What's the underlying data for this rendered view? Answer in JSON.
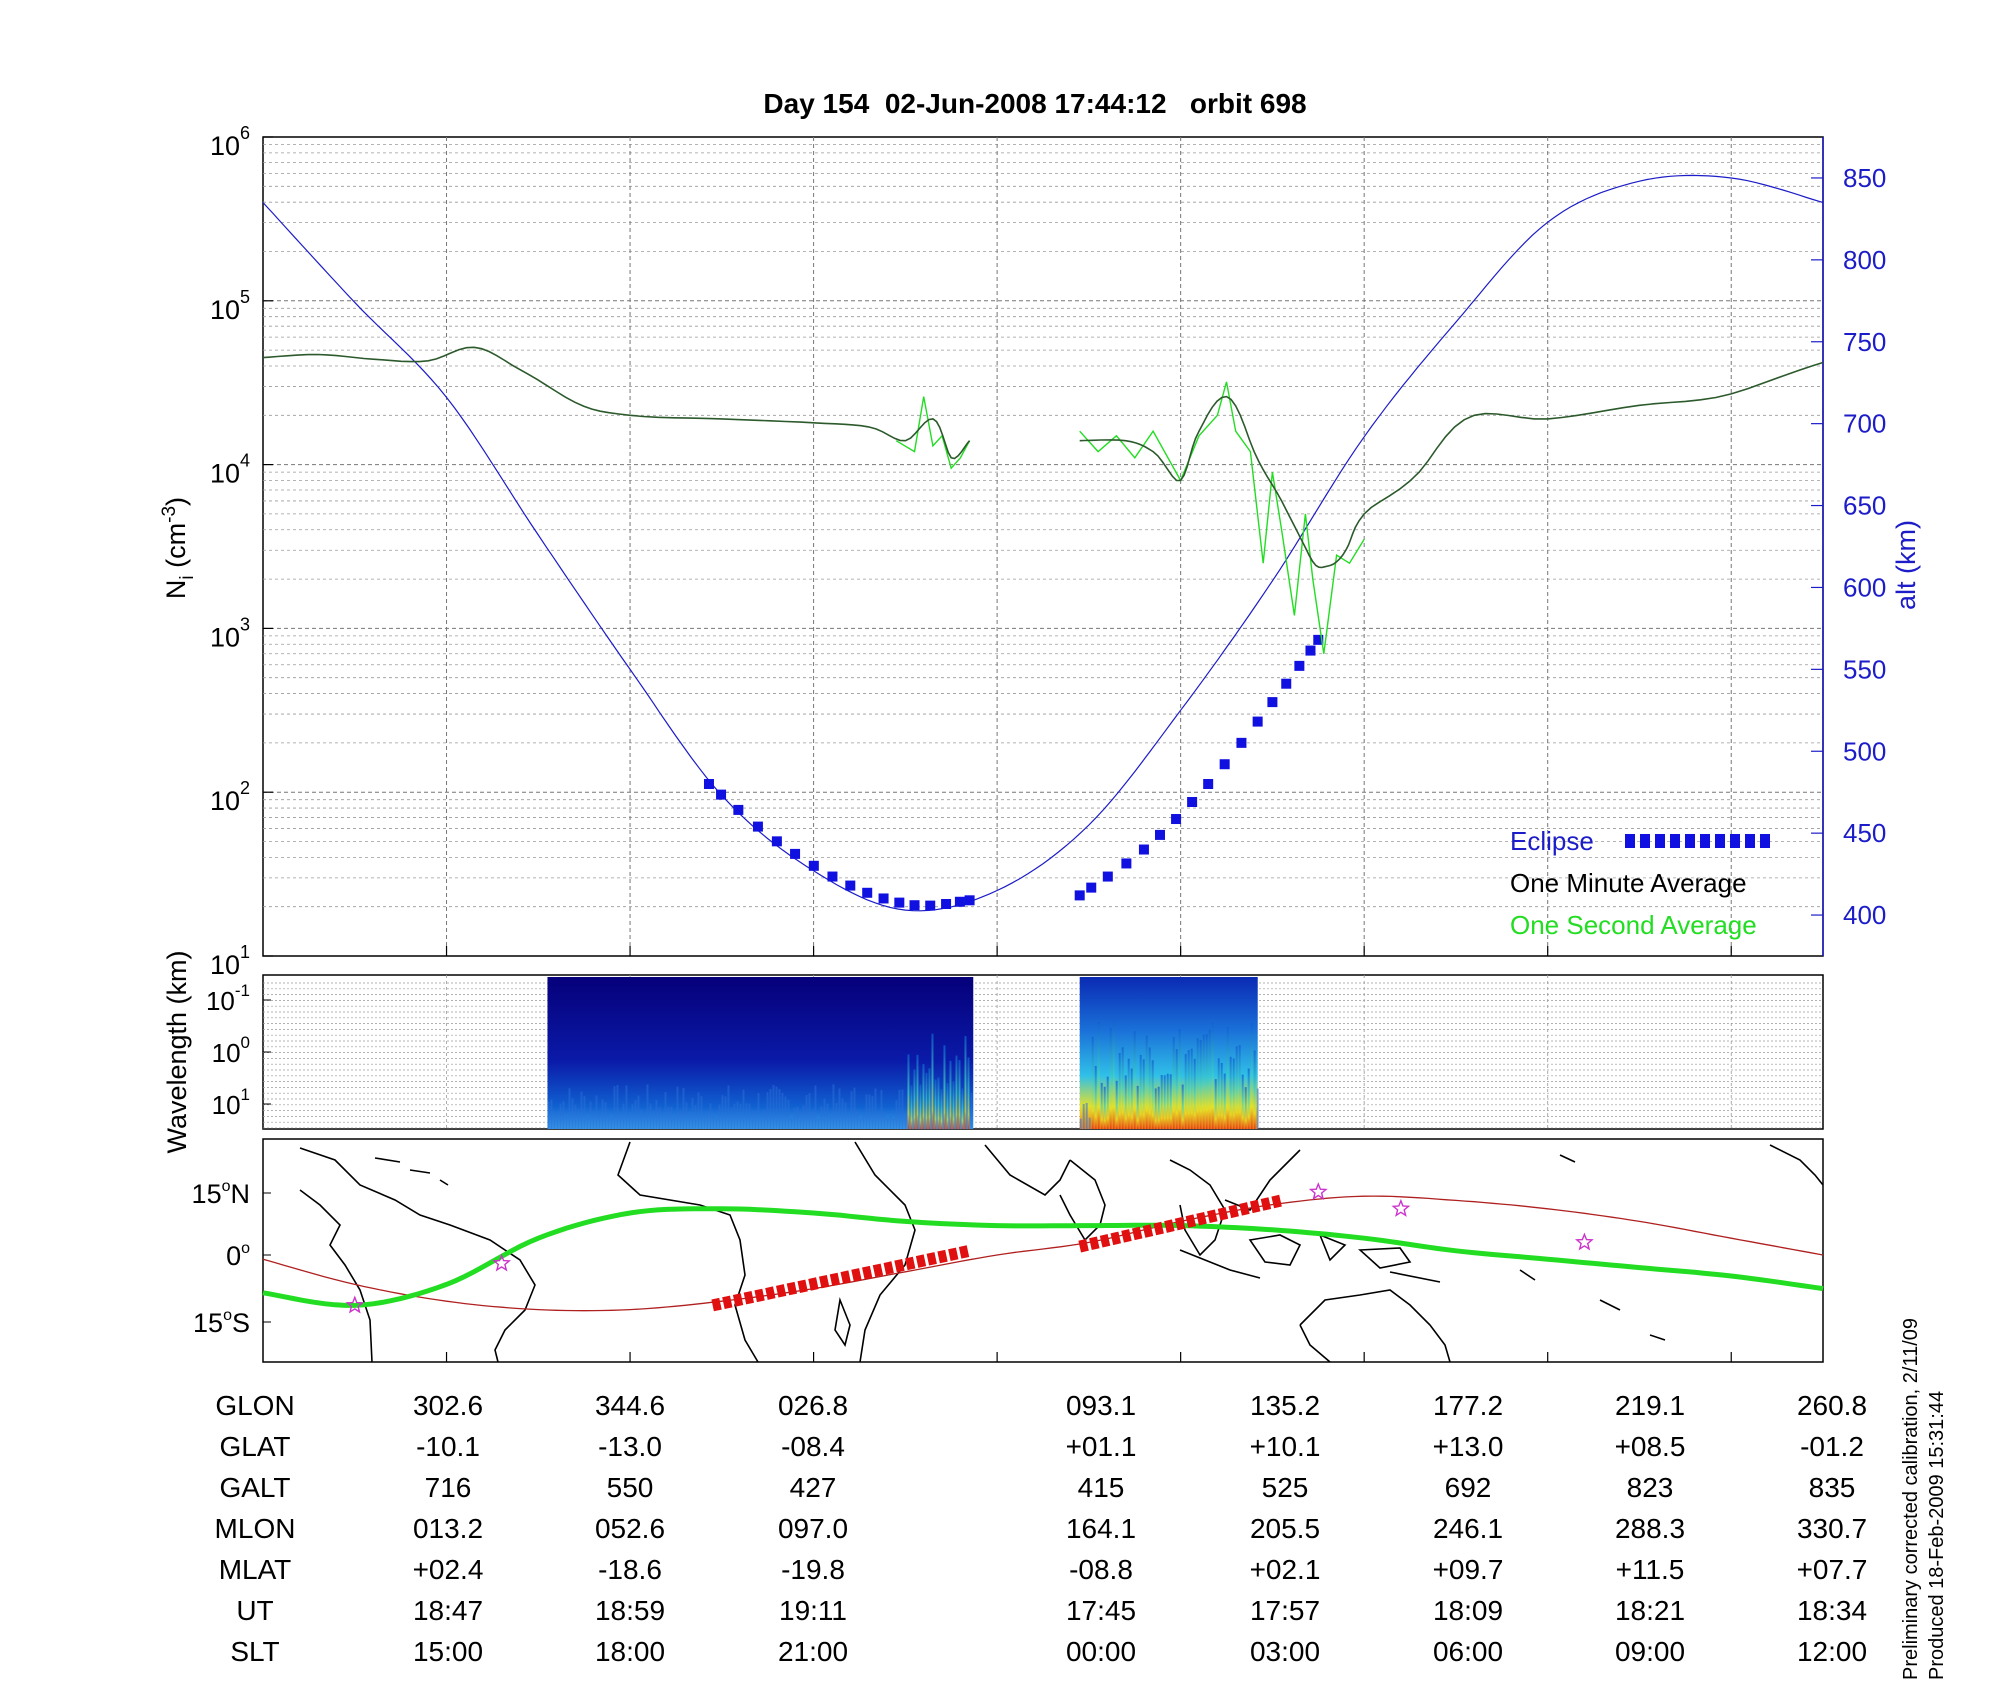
{
  "title": "Day 154  02-Jun-2008 17:44:12   orbit 698",
  "colors": {
    "eclipse": "#1010e0",
    "one_minute": "#000000",
    "one_second": "#22dd22",
    "alt_axis": "#1c1cc8",
    "track_red": "#e01010",
    "orbit_line": "#b02020",
    "star": "#cc33cc"
  },
  "chart_data": [
    {
      "type": "line",
      "panel": "density",
      "ylabel_left": "N_i (cm^-3)",
      "ylabel_right": "alt (km)",
      "y_scale": "log",
      "ylim": [
        10,
        1000000
      ],
      "left_ticks": [
        {
          "base": "10",
          "exp": "6"
        },
        {
          "base": "10",
          "exp": "5"
        },
        {
          "base": "10",
          "exp": "4"
        },
        {
          "base": "10",
          "exp": "3"
        },
        {
          "base": "10",
          "exp": "2"
        },
        {
          "base": "10",
          "exp": "1"
        }
      ],
      "right_ylim": [
        375,
        875
      ],
      "right_ticks": [
        "850",
        "800",
        "750",
        "700",
        "650",
        "600",
        "550",
        "500",
        "450",
        "400"
      ],
      "x_segments": 8.5,
      "grid": true,
      "legend": {
        "position": "bottom-right",
        "eclipse": "Eclipse",
        "one_minute": "One Minute Average",
        "one_second": "One Second Average"
      },
      "altitude_km": {
        "x": [
          0,
          0.5,
          1,
          1.5,
          2,
          2.5,
          3,
          3.5,
          4,
          4.5,
          5,
          5.5,
          6,
          6.5,
          7,
          7.5,
          8,
          8.5
        ],
        "y": [
          835,
          774,
          716,
          632,
          550,
          473,
          427,
          403,
          415,
          455,
          525,
          604,
          692,
          762,
          823,
          848,
          850,
          835
        ]
      },
      "eclipse_segments": [
        {
          "x": [
            2.43,
            2.8,
            3.2,
            3.55,
            3.85
          ],
          "y": [
            480,
            445,
            418,
            406,
            409
          ]
        },
        {
          "x": [
            4.45,
            4.8,
            5.15,
            5.5,
            5.75
          ],
          "y": [
            412,
            440,
            480,
            530,
            568
          ]
        }
      ],
      "one_minute_ni": [
        {
          "x": [
            0,
            0.3,
            0.6,
            0.9,
            1.15,
            1.4,
            1.7,
            2.0,
            2.5,
            3.0,
            3.3,
            3.5,
            3.65,
            3.75,
            3.85
          ],
          "y": [
            45000,
            47000,
            44000,
            43000,
            52000,
            38000,
            24000,
            20000,
            19000,
            18000,
            17000,
            14000,
            19000,
            11000,
            14000
          ]
        },
        {
          "x": [
            4.45,
            4.7,
            4.85,
            5.0,
            5.1,
            5.25,
            5.4,
            5.55,
            5.7,
            5.8,
            5.9,
            6.0,
            6.3,
            6.6,
            7.0,
            7.5,
            8.0,
            8.5
          ],
          "y": [
            14000,
            14000,
            12000,
            8000,
            16000,
            26000,
            12000,
            6000,
            2800,
            2400,
            3000,
            5000,
            9000,
            20000,
            19000,
            23000,
            27000,
            42000
          ]
        }
      ],
      "one_second_ni": [
        {
          "x": [
            3.45,
            3.55,
            3.6,
            3.65,
            3.7,
            3.75,
            3.8,
            3.85
          ],
          "y": [
            14000,
            12000,
            26000,
            13000,
            15000,
            9500,
            11000,
            14000
          ]
        },
        {
          "x": [
            4.45,
            4.55,
            4.65,
            4.75,
            4.85,
            5.0,
            5.1,
            5.2,
            5.25,
            5.3,
            5.38,
            5.45,
            5.5,
            5.55,
            5.62,
            5.68,
            5.72,
            5.78,
            5.85,
            5.92,
            6.0
          ],
          "y": [
            16000,
            12000,
            15000,
            11000,
            16000,
            8000,
            15000,
            20000,
            32000,
            16000,
            12000,
            2500,
            9000,
            4000,
            1200,
            5000,
            2000,
            700,
            2800,
            2500,
            3500
          ]
        }
      ]
    },
    {
      "type": "heatmap",
      "panel": "spectrogram",
      "ylabel": "Wavelength (km)",
      "y_scale": "log",
      "y_ticks": [
        {
          "base": "10",
          "exp": "-1"
        },
        {
          "base": "10",
          "exp": "0"
        },
        {
          "base": "10",
          "exp": "1"
        }
      ],
      "blocks": [
        {
          "x_start": 1.55,
          "x_end": 3.87,
          "max_intensity_x": [
            3.5,
            3.85
          ]
        },
        {
          "x_start": 4.45,
          "x_end": 5.42,
          "max_intensity_x": [
            4.5,
            5.4
          ]
        }
      ]
    },
    {
      "type": "map",
      "panel": "ground-track",
      "lat_ticks": [
        {
          "value": "15",
          "hemisphere": "N"
        },
        {
          "value": "0",
          "hemisphere": ""
        },
        {
          "value": "15",
          "hemisphere": "S"
        }
      ],
      "magnetic_equator": {
        "x": [
          0,
          0.5,
          1.0,
          1.5,
          2.0,
          2.5,
          3.0,
          3.5,
          4.0,
          4.5,
          5.0,
          5.5,
          6.0,
          6.5,
          7.0,
          7.5,
          8.0,
          8.5
        ],
        "lat": [
          -9,
          -12,
          -7,
          4,
          10,
          11,
          10,
          8,
          7,
          7,
          7,
          6,
          4,
          1,
          -1,
          -3,
          -5,
          -8
        ]
      },
      "orbit_track": {
        "x": [
          0,
          0.5,
          1.0,
          1.5,
          2.0,
          2.5,
          3.0,
          3.5,
          4.0,
          4.5,
          5.0,
          5.5,
          6.0,
          6.5,
          7.0,
          7.5,
          8.0,
          8.5
        ],
        "lat": [
          -1,
          -7,
          -11,
          -13,
          -13,
          -11,
          -8,
          -4,
          0,
          3,
          8,
          12,
          14,
          13,
          11,
          8,
          4,
          0
        ]
      },
      "eclipse_track": [
        {
          "x": [
            2.45,
            3.85
          ],
          "lat": [
            -12,
            1
          ]
        },
        {
          "x": [
            4.45,
            5.55
          ],
          "lat": [
            2,
            13
          ]
        }
      ],
      "stars": [
        {
          "x": 0.5,
          "lat": -12
        },
        {
          "x": 1.3,
          "lat": -2
        },
        {
          "x": 5.75,
          "lat": 15
        },
        {
          "x": 6.2,
          "lat": 11
        },
        {
          "x": 7.2,
          "lat": 3
        }
      ]
    }
  ],
  "table": {
    "row_labels": [
      "GLON",
      "GLAT",
      "GALT",
      "MLON",
      "MLAT",
      "UT",
      "SLT"
    ],
    "columns": [
      [
        "302.6",
        "-10.1",
        "716",
        "013.2",
        "+02.4",
        "18:47",
        "15:00"
      ],
      [
        "344.6",
        "-13.0",
        "550",
        "052.6",
        "-18.6",
        "18:59",
        "18:00"
      ],
      [
        "026.8",
        "-08.4",
        "427",
        "097.0",
        "-19.8",
        "19:11",
        "21:00"
      ],
      [
        "093.1",
        "+01.1",
        "415",
        "164.1",
        "-08.8",
        "17:45",
        "00:00"
      ],
      [
        "135.2",
        "+10.1",
        "525",
        "205.5",
        "+02.1",
        "17:57",
        "03:00"
      ],
      [
        "177.2",
        "+13.0",
        "692",
        "246.1",
        "+09.7",
        "18:09",
        "06:00"
      ],
      [
        "219.1",
        "+08.5",
        "823",
        "288.3",
        "+11.5",
        "18:21",
        "09:00"
      ],
      [
        "260.8",
        "-01.2",
        "835",
        "330.7",
        "+07.7",
        "18:34",
        "12:00"
      ]
    ]
  },
  "footer": {
    "line1": "Preliminary corrected calibration, 2/11/09",
    "line2": "Produced 18-Feb-2009 15:31:44"
  }
}
